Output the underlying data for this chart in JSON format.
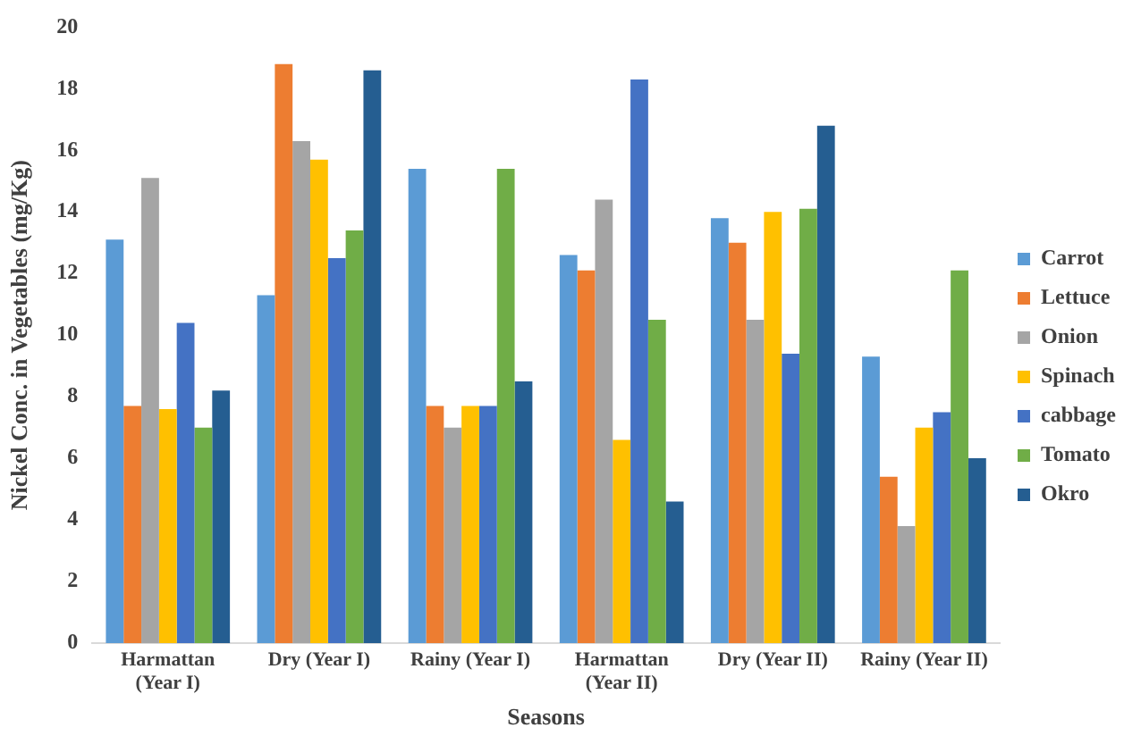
{
  "chart_data": {
    "type": "bar",
    "xlabel": "Seasons",
    "ylabel": "Nickel Conc. in Vegetables (mg/Kg)",
    "categories": [
      "Harmattan (Year I)",
      "Dry (Year I)",
      "Rainy (Year I)",
      "Harmattan (Year II)",
      "Dry (Year II)",
      "Rainy (Year II)"
    ],
    "series": [
      {
        "name": "Carrot",
        "color": "#5b9bd5",
        "values": [
          13.1,
          11.3,
          15.4,
          12.6,
          13.8,
          9.3
        ]
      },
      {
        "name": "Lettuce",
        "color": "#ed7d31",
        "values": [
          7.7,
          18.8,
          7.7,
          12.1,
          13.0,
          5.4
        ]
      },
      {
        "name": "Onion",
        "color": "#a5a5a5",
        "values": [
          15.1,
          16.3,
          7.0,
          14.4,
          10.5,
          3.8
        ]
      },
      {
        "name": "Spinach",
        "color": "#ffc000",
        "values": [
          7.6,
          15.7,
          7.7,
          6.6,
          14.0,
          7.0
        ]
      },
      {
        "name": "cabbage",
        "color": "#4472c4",
        "values": [
          10.4,
          12.5,
          7.7,
          18.3,
          9.4,
          7.5
        ]
      },
      {
        "name": "Tomato",
        "color": "#70ad47",
        "values": [
          7.0,
          13.4,
          15.4,
          10.5,
          14.1,
          12.1
        ]
      },
      {
        "name": "Okro",
        "color": "#255e91",
        "values": [
          8.2,
          18.6,
          8.5,
          4.6,
          16.8,
          6.0
        ]
      }
    ],
    "ylim": [
      0,
      20
    ],
    "yticks": [
      0,
      2,
      4,
      6,
      8,
      10,
      12,
      14,
      16,
      18,
      20
    ],
    "grid": false,
    "legend": "right"
  }
}
